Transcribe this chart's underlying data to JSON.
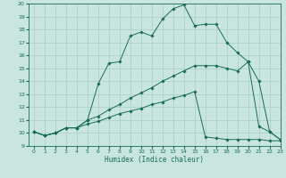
{
  "xlabel": "Humidex (Indice chaleur)",
  "xlim": [
    -0.5,
    23
  ],
  "ylim": [
    9,
    20
  ],
  "xticks": [
    0,
    1,
    2,
    3,
    4,
    5,
    6,
    7,
    8,
    9,
    10,
    11,
    12,
    13,
    14,
    15,
    16,
    17,
    18,
    19,
    20,
    21,
    22,
    23
  ],
  "yticks": [
    9,
    10,
    11,
    12,
    13,
    14,
    15,
    16,
    17,
    18,
    19,
    20
  ],
  "bg_color": "#c8e6de",
  "grid_color": "#a8cec6",
  "line_color": "#1a6b5a",
  "line1_y": [
    10.1,
    9.8,
    10.0,
    10.4,
    10.4,
    11.0,
    13.8,
    15.4,
    15.5,
    17.5,
    17.8,
    17.5,
    18.8,
    19.6,
    19.9,
    18.3,
    18.4,
    18.4,
    17.0,
    16.2,
    15.5,
    10.5,
    10.1,
    9.5
  ],
  "line2_y": [
    10.1,
    9.8,
    10.0,
    10.4,
    10.4,
    11.0,
    11.3,
    11.8,
    12.2,
    12.7,
    13.1,
    13.5,
    14.0,
    14.4,
    14.8,
    15.2,
    15.2,
    15.2,
    15.0,
    14.8,
    15.5,
    14.0,
    10.1,
    9.5
  ],
  "line3_y": [
    10.1,
    9.8,
    10.0,
    10.4,
    10.4,
    10.7,
    10.9,
    11.2,
    11.5,
    11.7,
    11.9,
    12.2,
    12.4,
    12.7,
    12.9,
    13.2,
    9.7,
    9.6,
    9.5,
    9.5,
    9.5,
    9.5,
    9.4,
    9.4
  ]
}
